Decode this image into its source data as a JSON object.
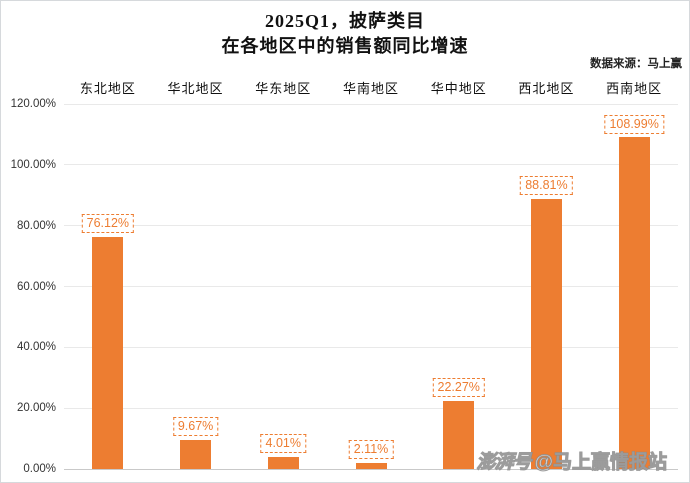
{
  "title": {
    "line1": "2025Q1，披萨类目",
    "line2": "在各地区中的销售额同比增速"
  },
  "source_note": "数据来源：马上赢",
  "watermark": {
    "logo": "澎湃号",
    "handle": "@马上赢情报站"
  },
  "colors": {
    "bar": "#ED7D31",
    "value_label_text": "#ED7D31",
    "value_label_border": "#ED7D31",
    "grid": "#E9E9E9",
    "baseline": "#C9C9C9",
    "text": "#111111"
  },
  "chart_data": {
    "type": "bar",
    "title": "2025Q1，披萨类目 在各地区中的销售额同比增速",
    "categories": [
      "东北地区",
      "华北地区",
      "华东地区",
      "华南地区",
      "华中地区",
      "西北地区",
      "西南地区"
    ],
    "values": [
      76.12,
      9.67,
      4.01,
      2.11,
      22.27,
      88.81,
      108.99
    ],
    "value_labels": [
      "76.12%",
      "9.67%",
      "4.01%",
      "2.11%",
      "22.27%",
      "88.81%",
      "108.99%"
    ],
    "xlabel": "",
    "ylabel": "",
    "ylim": [
      0,
      120
    ],
    "ytick_step": 20,
    "ytick_labels": [
      "0.00%",
      "20.00%",
      "40.00%",
      "60.00%",
      "80.00%",
      "100.00%",
      "120.00%"
    ],
    "grid": "horizontal",
    "legend_position": "none",
    "category_label_position": "top",
    "bar_value_labels_boxed": true
  }
}
